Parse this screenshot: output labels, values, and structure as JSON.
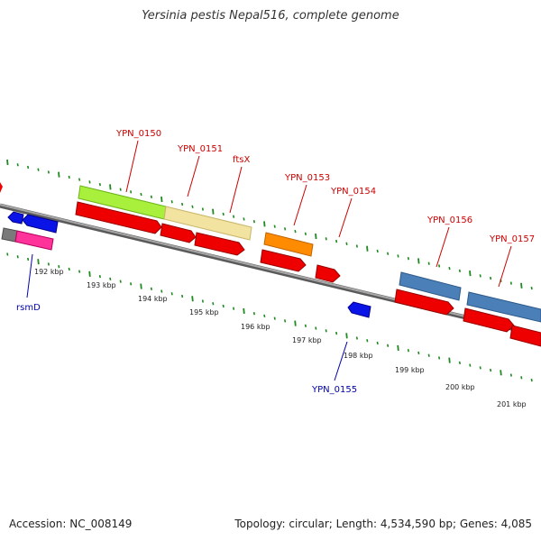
{
  "header": {
    "title": "Yersinia pestis Nepal516, complete genome"
  },
  "footer": {
    "accession": "Accession: NC_008149",
    "summary": "Topology: circular; Length: 4,534,590 bp; Genes: 4,085"
  },
  "colors": {
    "backbone": "#8c8c8c",
    "ruler_tick": "#1f8a1f",
    "gene_label": "#cc0000",
    "reverse_label": "#0000aa"
  },
  "ruler": {
    "labels": [
      "192 kbp",
      "193 kbp",
      "194 kbp",
      "195 kbp",
      "196 kbp",
      "197 kbp",
      "198 kbp",
      "199 kbp",
      "200 kbp",
      "201 kbp"
    ]
  },
  "gene_labels_top": [
    "YPN_0150",
    "YPN_0151",
    "ftsX",
    "YPN_0153",
    "YPN_0154",
    "YPN_0156",
    "YPN_0157"
  ],
  "gene_labels_bottom": [
    "rsmD",
    "YPN_0155"
  ]
}
